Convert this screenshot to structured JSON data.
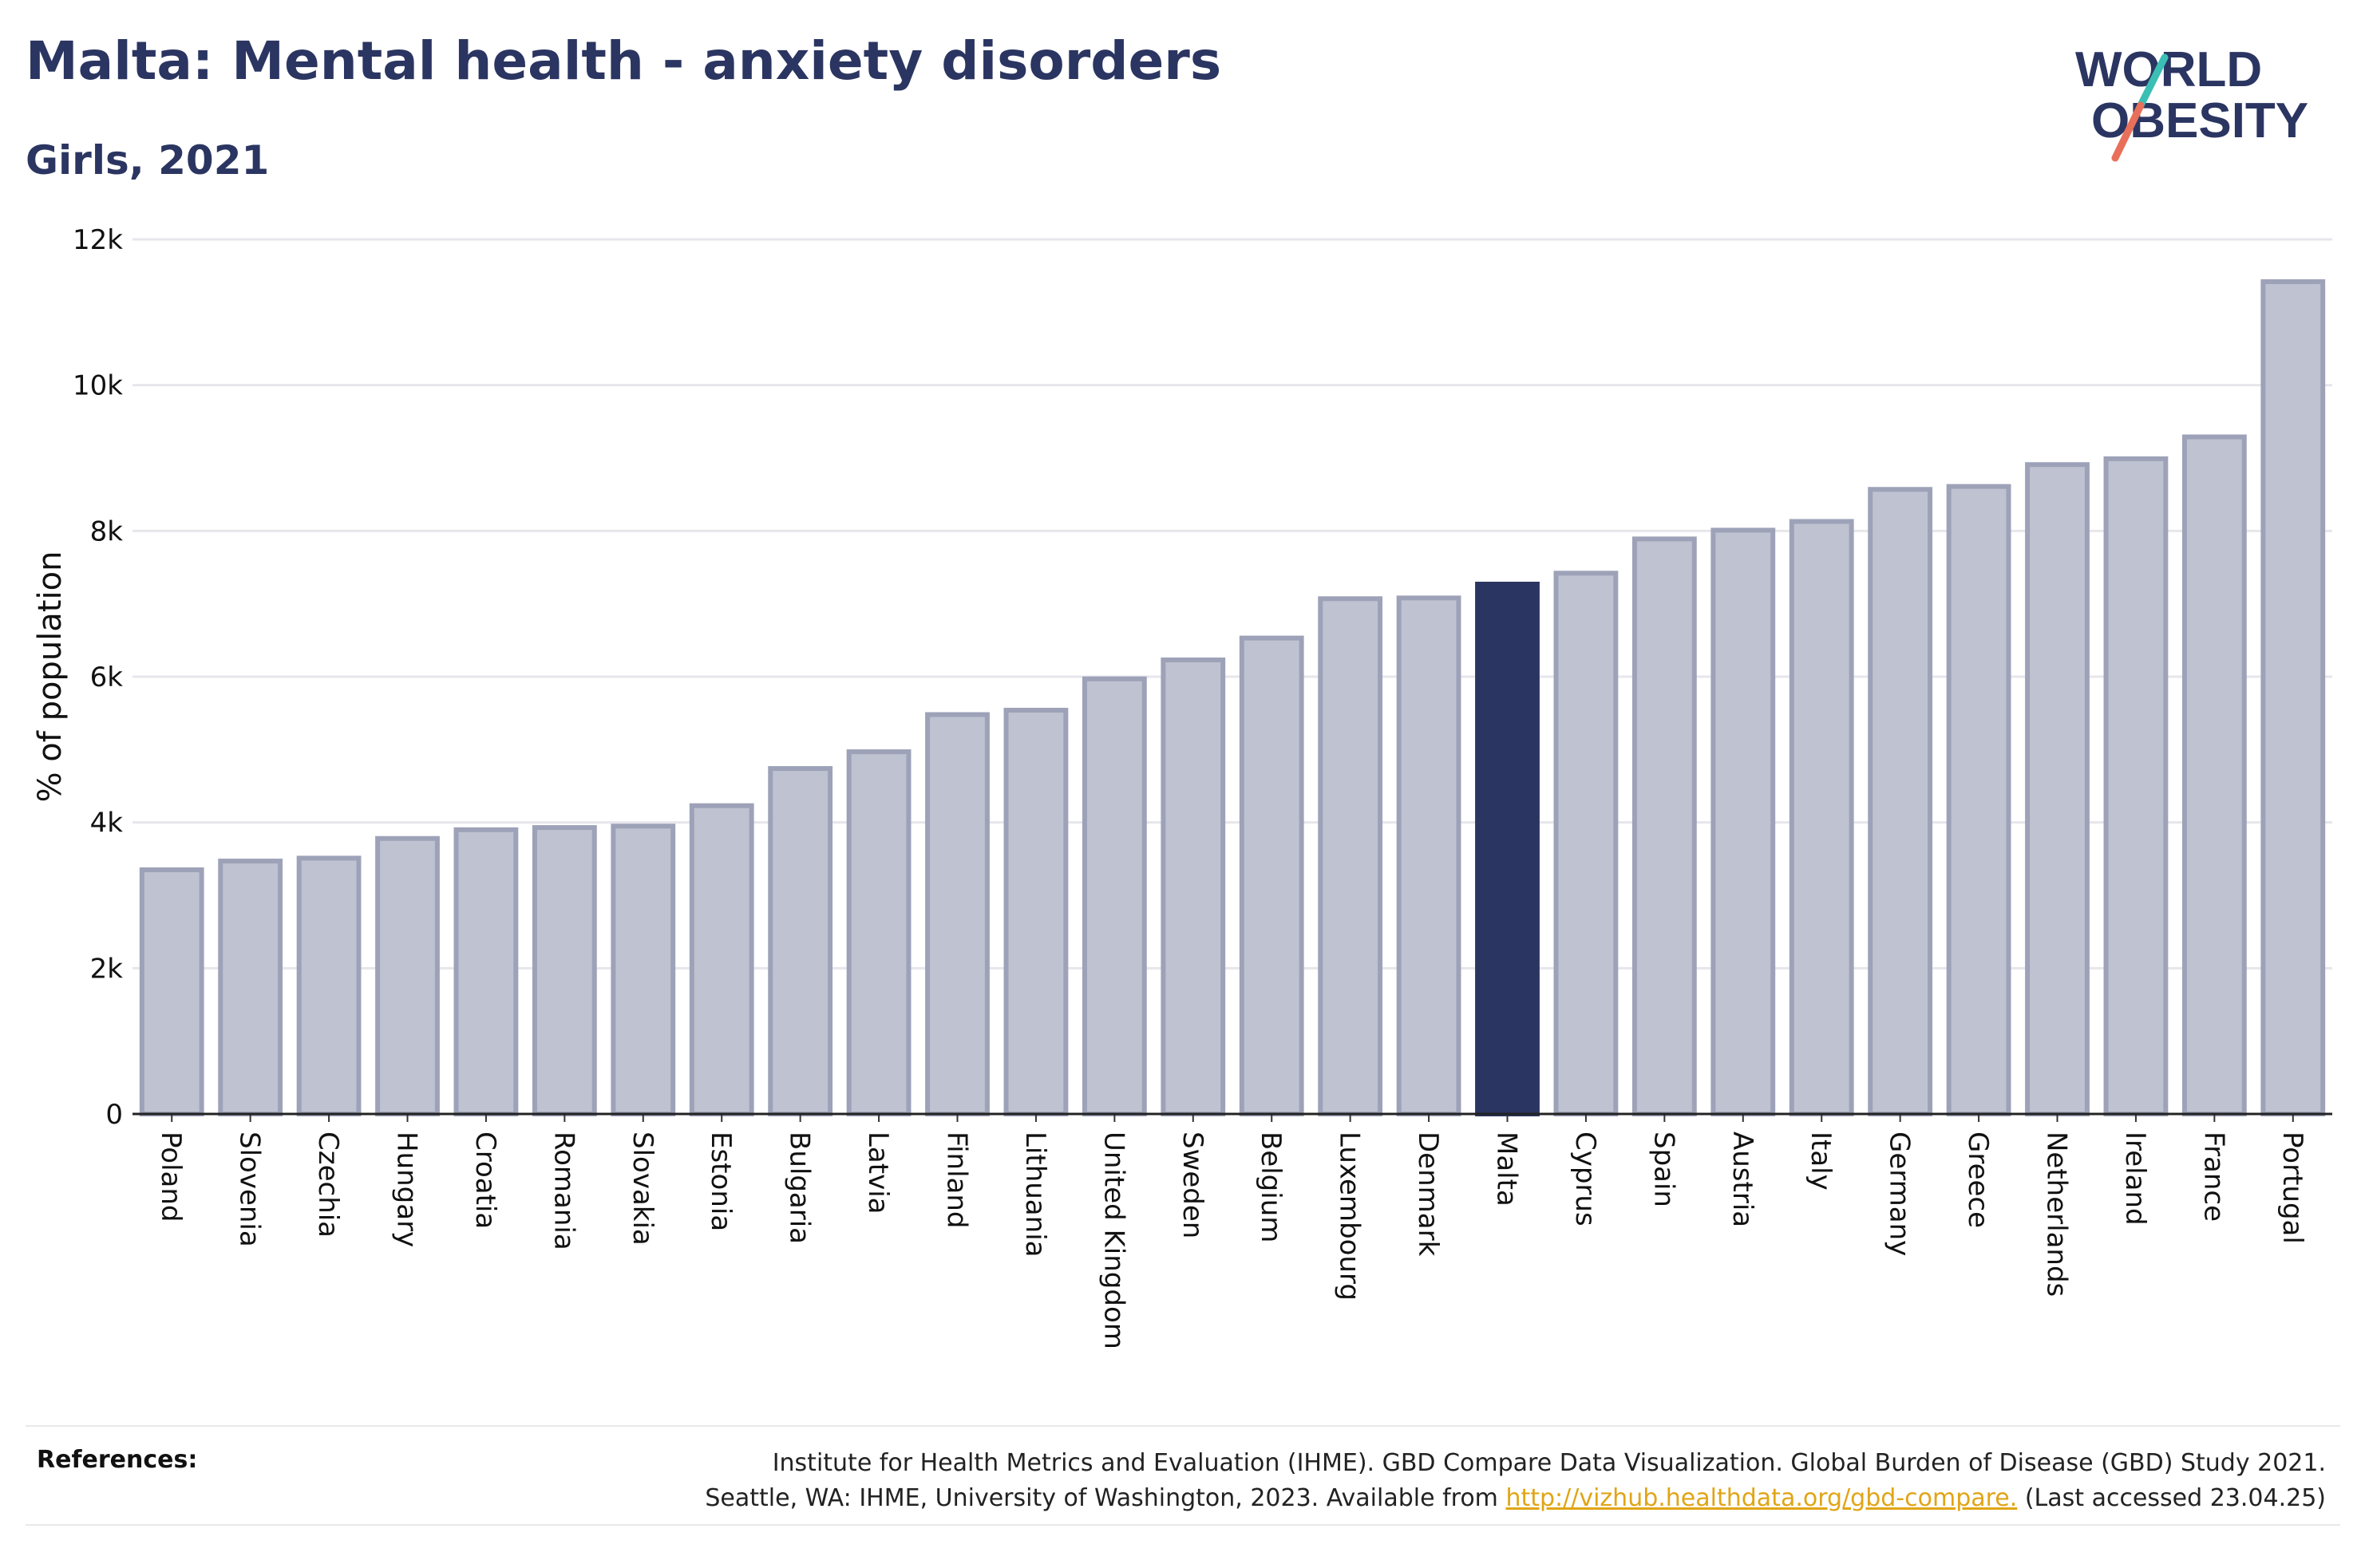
{
  "header": {
    "title": "Malta: Mental health - anxiety disorders",
    "subtitle": "Girls, 2021"
  },
  "logo": {
    "line1": "WORLD",
    "line2": "OBESITY"
  },
  "colors": {
    "bar": "#bfc2d0",
    "bar_stroke": "#9da2b8",
    "highlight": "#2b3561",
    "title": "#2b3561",
    "grid": "#e6e6ec",
    "link": "#e0a516",
    "logo_slash_teal": "#3bbfb5",
    "logo_slash_coral": "#e8705a"
  },
  "chart_data": {
    "type": "bar",
    "ylabel": "% of population",
    "ylim": [
      0,
      12000
    ],
    "yticks": [
      0,
      2000,
      4000,
      6000,
      8000,
      10000,
      12000
    ],
    "ytick_labels": [
      "0",
      "2k",
      "4k",
      "6k",
      "8k",
      "10k",
      "12k"
    ],
    "grid": true,
    "highlight": "Malta",
    "categories": [
      "Poland",
      "Slovenia",
      "Czechia",
      "Hungary",
      "Croatia",
      "Romania",
      "Slovakia",
      "Estonia",
      "Bulgaria",
      "Latvia",
      "Finland",
      "Lithuania",
      "United Kingdom",
      "Sweden",
      "Belgium",
      "Luxembourg",
      "Denmark",
      "Malta",
      "Cyprus",
      "Spain",
      "Austria",
      "Italy",
      "Germany",
      "Greece",
      "Netherlands",
      "Ireland",
      "France",
      "Portugal"
    ],
    "values": [
      3350,
      3470,
      3510,
      3780,
      3900,
      3930,
      3950,
      4230,
      4740,
      4970,
      5480,
      5540,
      5970,
      6230,
      6530,
      7070,
      7080,
      7270,
      7420,
      7890,
      8010,
      8130,
      8570,
      8610,
      8910,
      8990,
      9290,
      11420
    ]
  },
  "references": {
    "label": "References:",
    "line1": "Institute for Health Metrics and Evaluation (IHME). GBD Compare Data Visualization. Global Burden of Disease (GBD) Study 2021.",
    "line2_prefix": "Seattle, WA: IHME, University of Washington, 2023. Available from ",
    "link": "http://vizhub.healthdata.org/gbd-compare.",
    "line2_suffix": " (Last accessed 23.04.25)"
  }
}
